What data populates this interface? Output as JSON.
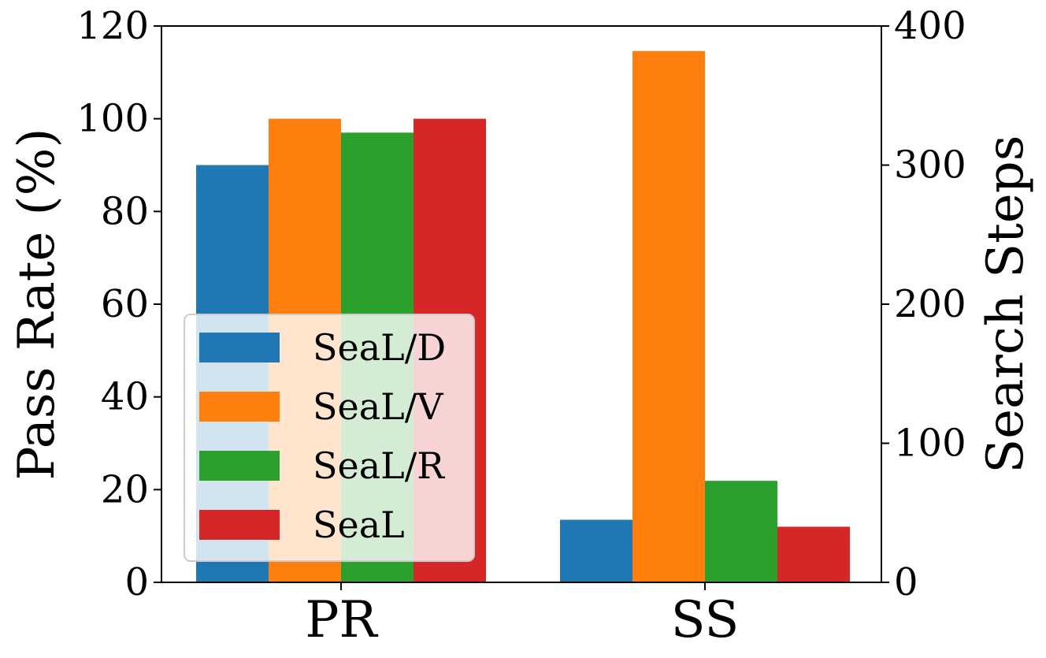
{
  "chart_data": {
    "type": "bar",
    "categories": [
      "PR",
      "SS"
    ],
    "series": [
      {
        "name": "SeaL/D",
        "color": "#1f77b4",
        "values": [
          90,
          45
        ]
      },
      {
        "name": "SeaL/V",
        "color": "#ff7f0e",
        "values": [
          100,
          382
        ]
      },
      {
        "name": "SeaL/R",
        "color": "#2ca02c",
        "values": [
          97,
          73
        ]
      },
      {
        "name": "SeaL",
        "color": "#d62728",
        "values": [
          100,
          40
        ]
      }
    ],
    "axes": {
      "left": {
        "label": "Pass Rate (%)",
        "ylim": [
          0,
          120
        ],
        "ticks": [
          "0",
          "20",
          "40",
          "60",
          "80",
          "100",
          "120"
        ],
        "applies_to_category": "PR"
      },
      "right": {
        "label": "Search Steps",
        "ylim": [
          0,
          400
        ],
        "ticks": [
          "0",
          "100",
          "200",
          "300",
          "400"
        ],
        "applies_to_category": "SS"
      }
    },
    "legend": {
      "position": "lower-left"
    },
    "grid": false
  }
}
